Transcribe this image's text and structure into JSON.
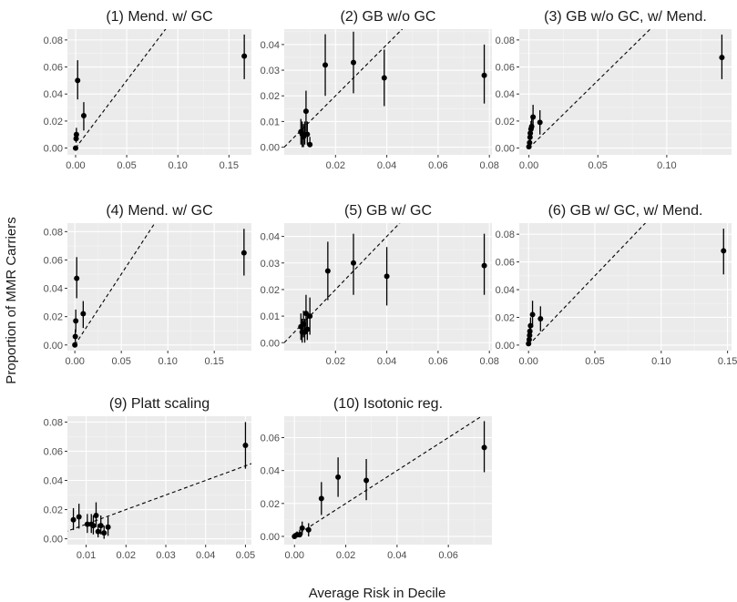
{
  "figure": {
    "xlabel": "Average Risk in Decile",
    "ylabel": "Proportion of MMR Carriers",
    "colors": {
      "panel_bg": "#ebebeb",
      "grid_major": "#ffffff",
      "grid_minor": "#f5f5f5",
      "point": "#000000",
      "refline": "#000000"
    }
  },
  "chart_data": [
    {
      "type": "scatter",
      "title": "(1) Mend. w/ GC",
      "xlim": [
        -0.008,
        0.172
      ],
      "ylim": [
        -0.005,
        0.088
      ],
      "xticks": [
        0.0,
        0.05,
        0.1,
        0.15
      ],
      "xtick_labels": [
        "0.00",
        "0.05",
        "0.10",
        "0.15"
      ],
      "yticks": [
        0.0,
        0.02,
        0.04,
        0.06,
        0.08
      ],
      "ytick_labels": [
        "0.00",
        "0.02",
        "0.04",
        "0.06",
        "0.08"
      ],
      "points": [
        {
          "x": 0.0,
          "y": 0.0,
          "lo": 0.0,
          "hi": 0.0
        },
        {
          "x": 0.0005,
          "y": 0.007,
          "lo": 0.004,
          "hi": 0.012
        },
        {
          "x": 0.0008,
          "y": 0.01,
          "lo": 0.006,
          "hi": 0.015
        },
        {
          "x": 0.002,
          "y": 0.05,
          "lo": 0.036,
          "hi": 0.065
        },
        {
          "x": 0.008,
          "y": 0.024,
          "lo": 0.013,
          "hi": 0.034
        },
        {
          "x": 0.165,
          "y": 0.068,
          "lo": 0.051,
          "hi": 0.084
        }
      ]
    },
    {
      "type": "scatter",
      "title": "(2) GB w/o GC",
      "xlim": [
        0.0,
        0.081
      ],
      "ylim": [
        -0.003,
        0.046
      ],
      "xticks": [
        0.02,
        0.04,
        0.06,
        0.08
      ],
      "xtick_labels": [
        "0.02",
        "0.04",
        "0.06",
        "0.08"
      ],
      "yticks": [
        0.0,
        0.01,
        0.02,
        0.03,
        0.04
      ],
      "ytick_labels": [
        "0.00",
        "0.01",
        "0.02",
        "0.03",
        "0.04"
      ],
      "points": [
        {
          "x": 0.0065,
          "y": 0.006,
          "lo": 0.001,
          "hi": 0.011
        },
        {
          "x": 0.007,
          "y": 0.005,
          "lo": 0.0,
          "hi": 0.01
        },
        {
          "x": 0.0075,
          "y": 0.004,
          "lo": 0.0,
          "hi": 0.009
        },
        {
          "x": 0.008,
          "y": 0.005,
          "lo": 0.001,
          "hi": 0.01
        },
        {
          "x": 0.0085,
          "y": 0.014,
          "lo": 0.006,
          "hi": 0.022
        },
        {
          "x": 0.009,
          "y": 0.005,
          "lo": 0.001,
          "hi": 0.01
        },
        {
          "x": 0.01,
          "y": 0.001,
          "lo": 0.0,
          "hi": 0.004
        },
        {
          "x": 0.016,
          "y": 0.032,
          "lo": 0.02,
          "hi": 0.044
        },
        {
          "x": 0.027,
          "y": 0.033,
          "lo": 0.021,
          "hi": 0.045
        },
        {
          "x": 0.039,
          "y": 0.027,
          "lo": 0.016,
          "hi": 0.038
        },
        {
          "x": 0.078,
          "y": 0.028,
          "lo": 0.017,
          "hi": 0.04
        }
      ]
    },
    {
      "type": "scatter",
      "title": "(3) GB w/o GC, w/ Mend.",
      "xlim": [
        -0.007,
        0.147
      ],
      "ylim": [
        -0.005,
        0.088
      ],
      "xticks": [
        0.0,
        0.05,
        0.1
      ],
      "xtick_labels": [
        "0.00",
        "0.05",
        "0.10"
      ],
      "yticks": [
        0.0,
        0.02,
        0.04,
        0.06,
        0.08
      ],
      "ytick_labels": [
        "0.00",
        "0.02",
        "0.04",
        "0.06",
        "0.08"
      ],
      "points": [
        {
          "x": 0.0,
          "y": 0.001,
          "lo": 0.0,
          "hi": 0.004
        },
        {
          "x": 0.0005,
          "y": 0.004,
          "lo": 0.001,
          "hi": 0.008
        },
        {
          "x": 0.0008,
          "y": 0.008,
          "lo": 0.004,
          "hi": 0.013
        },
        {
          "x": 0.001,
          "y": 0.011,
          "lo": 0.006,
          "hi": 0.016
        },
        {
          "x": 0.0015,
          "y": 0.014,
          "lo": 0.008,
          "hi": 0.02
        },
        {
          "x": 0.002,
          "y": 0.016,
          "lo": 0.01,
          "hi": 0.023
        },
        {
          "x": 0.003,
          "y": 0.023,
          "lo": 0.014,
          "hi": 0.032
        },
        {
          "x": 0.008,
          "y": 0.019,
          "lo": 0.01,
          "hi": 0.028
        },
        {
          "x": 0.14,
          "y": 0.067,
          "lo": 0.051,
          "hi": 0.084
        }
      ]
    },
    {
      "type": "scatter",
      "title": "(4) Mend. w/ GC",
      "xlim": [
        -0.008,
        0.19
      ],
      "ylim": [
        -0.004,
        0.086
      ],
      "xticks": [
        0.0,
        0.05,
        0.1,
        0.15
      ],
      "xtick_labels": [
        "0.00",
        "0.05",
        "0.10",
        "0.15"
      ],
      "yticks": [
        0.0,
        0.02,
        0.04,
        0.06,
        0.08
      ],
      "ytick_labels": [
        "0.00",
        "0.02",
        "0.04",
        "0.06",
        "0.08"
      ],
      "points": [
        {
          "x": 0.0,
          "y": 0.0,
          "lo": 0.0,
          "hi": 0.002
        },
        {
          "x": 0.0005,
          "y": 0.006,
          "lo": 0.002,
          "hi": 0.011
        },
        {
          "x": 0.001,
          "y": 0.017,
          "lo": 0.009,
          "hi": 0.025
        },
        {
          "x": 0.002,
          "y": 0.047,
          "lo": 0.033,
          "hi": 0.062
        },
        {
          "x": 0.009,
          "y": 0.022,
          "lo": 0.012,
          "hi": 0.031
        },
        {
          "x": 0.182,
          "y": 0.065,
          "lo": 0.049,
          "hi": 0.082
        }
      ]
    },
    {
      "type": "scatter",
      "title": "(5) GB w/ GC",
      "xlim": [
        0.0,
        0.081
      ],
      "ylim": [
        -0.003,
        0.045
      ],
      "xticks": [
        0.02,
        0.04,
        0.06,
        0.08
      ],
      "xtick_labels": [
        "0.02",
        "0.04",
        "0.06",
        "0.08"
      ],
      "yticks": [
        0.0,
        0.01,
        0.02,
        0.03,
        0.04
      ],
      "ytick_labels": [
        "0.00",
        "0.01",
        "0.02",
        "0.03",
        "0.04"
      ],
      "points": [
        {
          "x": 0.0065,
          "y": 0.006,
          "lo": 0.001,
          "hi": 0.011
        },
        {
          "x": 0.007,
          "y": 0.004,
          "lo": 0.0,
          "hi": 0.009
        },
        {
          "x": 0.0075,
          "y": 0.007,
          "lo": 0.002,
          "hi": 0.012
        },
        {
          "x": 0.008,
          "y": 0.004,
          "lo": 0.0,
          "hi": 0.009
        },
        {
          "x": 0.0085,
          "y": 0.011,
          "lo": 0.004,
          "hi": 0.018
        },
        {
          "x": 0.009,
          "y": 0.005,
          "lo": 0.001,
          "hi": 0.01
        },
        {
          "x": 0.01,
          "y": 0.01,
          "lo": 0.003,
          "hi": 0.017
        },
        {
          "x": 0.017,
          "y": 0.027,
          "lo": 0.016,
          "hi": 0.038
        },
        {
          "x": 0.027,
          "y": 0.03,
          "lo": 0.018,
          "hi": 0.041
        },
        {
          "x": 0.04,
          "y": 0.025,
          "lo": 0.014,
          "hi": 0.036
        },
        {
          "x": 0.078,
          "y": 0.029,
          "lo": 0.018,
          "hi": 0.041
        }
      ]
    },
    {
      "type": "scatter",
      "title": "(6) GB w/ GC, w/ Mend.",
      "xlim": [
        -0.007,
        0.153
      ],
      "ylim": [
        -0.004,
        0.088
      ],
      "xticks": [
        0.0,
        0.05,
        0.1,
        0.15
      ],
      "xtick_labels": [
        "0.00",
        "0.05",
        "0.10",
        "0.15"
      ],
      "yticks": [
        0.0,
        0.02,
        0.04,
        0.06,
        0.08
      ],
      "ytick_labels": [
        "0.00",
        "0.02",
        "0.04",
        "0.06",
        "0.08"
      ],
      "points": [
        {
          "x": 0.0,
          "y": 0.001,
          "lo": 0.0,
          "hi": 0.004
        },
        {
          "x": 0.0005,
          "y": 0.004,
          "lo": 0.001,
          "hi": 0.008
        },
        {
          "x": 0.0008,
          "y": 0.007,
          "lo": 0.003,
          "hi": 0.012
        },
        {
          "x": 0.001,
          "y": 0.01,
          "lo": 0.005,
          "hi": 0.015
        },
        {
          "x": 0.0015,
          "y": 0.014,
          "lo": 0.008,
          "hi": 0.02
        },
        {
          "x": 0.003,
          "y": 0.022,
          "lo": 0.013,
          "hi": 0.032
        },
        {
          "x": 0.009,
          "y": 0.019,
          "lo": 0.01,
          "hi": 0.028
        },
        {
          "x": 0.147,
          "y": 0.068,
          "lo": 0.051,
          "hi": 0.084
        }
      ]
    },
    {
      "type": "scatter",
      "title": "(9) Platt scaling",
      "xlim": [
        0.0053,
        0.0515
      ],
      "ylim": [
        -0.004,
        0.084
      ],
      "xticks": [
        0.01,
        0.02,
        0.03,
        0.04,
        0.05
      ],
      "xtick_labels": [
        "0.01",
        "0.02",
        "0.03",
        "0.04",
        "0.05"
      ],
      "yticks": [
        0.0,
        0.02,
        0.04,
        0.06,
        0.08
      ],
      "ytick_labels": [
        "0.00",
        "0.02",
        "0.04",
        "0.06",
        "0.08"
      ],
      "points": [
        {
          "x": 0.0068,
          "y": 0.013,
          "lo": 0.006,
          "hi": 0.021
        },
        {
          "x": 0.0082,
          "y": 0.015,
          "lo": 0.007,
          "hi": 0.024
        },
        {
          "x": 0.0103,
          "y": 0.01,
          "lo": 0.004,
          "hi": 0.017
        },
        {
          "x": 0.0113,
          "y": 0.01,
          "lo": 0.004,
          "hi": 0.017
        },
        {
          "x": 0.0118,
          "y": 0.009,
          "lo": 0.003,
          "hi": 0.016
        },
        {
          "x": 0.0125,
          "y": 0.016,
          "lo": 0.008,
          "hi": 0.025
        },
        {
          "x": 0.013,
          "y": 0.005,
          "lo": 0.001,
          "hi": 0.01
        },
        {
          "x": 0.0137,
          "y": 0.009,
          "lo": 0.003,
          "hi": 0.016
        },
        {
          "x": 0.0145,
          "y": 0.004,
          "lo": 0.0,
          "hi": 0.009
        },
        {
          "x": 0.0155,
          "y": 0.008,
          "lo": 0.002,
          "hi": 0.015
        },
        {
          "x": 0.05,
          "y": 0.064,
          "lo": 0.048,
          "hi": 0.08
        }
      ]
    },
    {
      "type": "scatter",
      "title": "(10) Isotonic reg.",
      "xlim": [
        -0.004,
        0.077
      ],
      "ylim": [
        -0.005,
        0.073
      ],
      "xticks": [
        0.0,
        0.02,
        0.04,
        0.06
      ],
      "xtick_labels": [
        "0.00",
        "0.02",
        "0.04",
        "0.06"
      ],
      "yticks": [
        0.0,
        0.02,
        0.04,
        0.06
      ],
      "ytick_labels": [
        "0.00",
        "0.02",
        "0.04",
        "0.06"
      ],
      "points": [
        {
          "x": 0.0,
          "y": 0.0,
          "lo": 0.0,
          "hi": 0.002
        },
        {
          "x": 0.001,
          "y": 0.001,
          "lo": 0.0,
          "hi": 0.003
        },
        {
          "x": 0.002,
          "y": 0.001,
          "lo": 0.0,
          "hi": 0.004
        },
        {
          "x": 0.003,
          "y": 0.005,
          "lo": 0.001,
          "hi": 0.009
        },
        {
          "x": 0.0055,
          "y": 0.004,
          "lo": 0.0,
          "hi": 0.008
        },
        {
          "x": 0.0105,
          "y": 0.023,
          "lo": 0.013,
          "hi": 0.033
        },
        {
          "x": 0.017,
          "y": 0.036,
          "lo": 0.024,
          "hi": 0.048
        },
        {
          "x": 0.028,
          "y": 0.034,
          "lo": 0.022,
          "hi": 0.047
        },
        {
          "x": 0.074,
          "y": 0.054,
          "lo": 0.039,
          "hi": 0.07
        }
      ]
    }
  ]
}
